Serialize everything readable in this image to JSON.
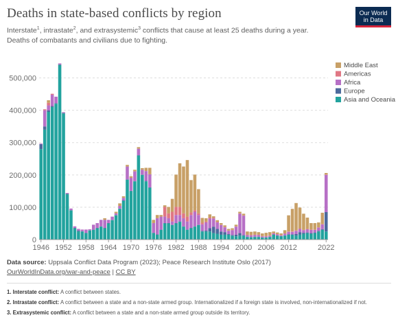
{
  "header": {
    "title": "Deaths in state-based conflicts by region",
    "subtitle_parts": [
      "Interstate",
      "1",
      ", intrastate",
      "2",
      ", and extrasystemic",
      "3",
      " conflicts that cause at least 25 deaths during a year. Deaths of combatants and civilians due to fighting."
    ],
    "logo_line1": "Our World",
    "logo_line2": "in Data"
  },
  "footer": {
    "source_label": "Data source:",
    "source_text": " Uppsala Conflict Data Program (2023); Peace Research Institute Oslo (2017)",
    "link": "OurWorldInData.org/war-and-peace",
    "sep": " | ",
    "license": "CC BY"
  },
  "notes": [
    {
      "label": "1. Interstate conflict:",
      "text": " A conflict between states."
    },
    {
      "label": "2. Intrastate conflict:",
      "text": " A conflict between a state and a non-state armed group. Internationalized if a foreign state is involved, non-internationalized if not."
    },
    {
      "label": "3. Extrasystemic conflict:",
      "text": " A conflict between a state and a non-state armed group outside its territory."
    }
  ],
  "colors": {
    "Asia and Oceania": "#22a39e",
    "Europe": "#4c6a9c",
    "Africa": "#b770c6",
    "Americas": "#e07784",
    "Middle East": "#c8a067",
    "grid": "#dddddd",
    "axis": "#999999"
  },
  "chart_data": {
    "type": "bar",
    "stacked": true,
    "ylim": [
      0,
      550000
    ],
    "yticks": [
      "0",
      "100,000",
      "200,000",
      "300,000",
      "400,000",
      "500,000"
    ],
    "xticks": [
      "1946",
      "1952",
      "1958",
      "1964",
      "1970",
      "1976",
      "1982",
      "1988",
      "1994",
      "2000",
      "2006",
      "2012",
      "2022"
    ],
    "legend_position": "right",
    "grid": true,
    "x": [
      1946,
      1947,
      1948,
      1949,
      1950,
      1951,
      1952,
      1953,
      1954,
      1955,
      1956,
      1957,
      1958,
      1959,
      1960,
      1961,
      1962,
      1963,
      1964,
      1965,
      1966,
      1967,
      1968,
      1969,
      1970,
      1971,
      1972,
      1973,
      1974,
      1975,
      1976,
      1977,
      1978,
      1979,
      1980,
      1981,
      1982,
      1983,
      1984,
      1985,
      1986,
      1987,
      1988,
      1989,
      1990,
      1991,
      1992,
      1993,
      1994,
      1995,
      1996,
      1997,
      1998,
      1999,
      2000,
      2001,
      2002,
      2003,
      2004,
      2005,
      2006,
      2007,
      2008,
      2009,
      2010,
      2011,
      2012,
      2013,
      2014,
      2015,
      2016,
      2017,
      2018,
      2019,
      2020,
      2021,
      2022
    ],
    "series": [
      {
        "name": "Asia and Oceania",
        "values": [
          280000,
          340000,
          395000,
          410000,
          420000,
          540000,
          390000,
          140000,
          90000,
          35000,
          25000,
          25000,
          20000,
          28000,
          30000,
          35000,
          40000,
          35000,
          50000,
          60000,
          75000,
          95000,
          120000,
          185000,
          150000,
          180000,
          260000,
          200000,
          180000,
          160000,
          20000,
          15000,
          30000,
          50000,
          50000,
          45000,
          50000,
          55000,
          40000,
          30000,
          35000,
          40000,
          45000,
          25000,
          25000,
          25000,
          20000,
          18000,
          15000,
          15000,
          15000,
          12000,
          10000,
          12000,
          12000,
          8000,
          7000,
          8000,
          8000,
          6000,
          6000,
          8000,
          15000,
          12000,
          10000,
          12000,
          15000,
          15000,
          12000,
          15000,
          18000,
          20000,
          18000,
          20000,
          25000,
          30000,
          25000
        ]
      },
      {
        "name": "Europe",
        "values": [
          15000,
          10000,
          5000,
          3000,
          2000,
          2000,
          2000,
          2000,
          1000,
          1000,
          3000,
          1000,
          1000,
          1000,
          1000,
          1000,
          1000,
          1000,
          1000,
          1000,
          1000,
          1000,
          1000,
          1000,
          1000,
          1000,
          1000,
          1000,
          2000,
          2000,
          1000,
          1000,
          1000,
          1000,
          1000,
          1000,
          1000,
          1000,
          1000,
          1000,
          1000,
          1000,
          1000,
          2000,
          3000,
          10000,
          20000,
          15000,
          10000,
          8000,
          2000,
          2000,
          5000,
          8000,
          2000,
          1000,
          1000,
          1000,
          1000,
          1000,
          1000,
          1000,
          1000,
          1000,
          1000,
          1000,
          1000,
          1000,
          5000,
          8000,
          3000,
          2000,
          2000,
          2000,
          2000,
          2000,
          60000
        ]
      },
      {
        "name": "Africa",
        "values": [
          2000,
          50000,
          15000,
          35000,
          20000,
          3000,
          2000,
          2000,
          5000,
          5000,
          5000,
          5000,
          10000,
          3000,
          15000,
          15000,
          20000,
          25000,
          10000,
          10000,
          5000,
          8000,
          8000,
          40000,
          40000,
          30000,
          20000,
          15000,
          30000,
          40000,
          30000,
          50000,
          40000,
          20000,
          15000,
          10000,
          25000,
          20000,
          25000,
          25000,
          40000,
          45000,
          30000,
          20000,
          25000,
          30000,
          25000,
          20000,
          20000,
          15000,
          10000,
          15000,
          25000,
          60000,
          60000,
          5000,
          5000,
          5000,
          5000,
          3000,
          3000,
          3000,
          3000,
          3000,
          2000,
          5000,
          8000,
          8000,
          10000,
          10000,
          8000,
          10000,
          10000,
          8000,
          10000,
          15000,
          115000
        ]
      },
      {
        "name": "Americas",
        "values": [
          0,
          3000,
          8000,
          3000,
          0,
          0,
          0,
          0,
          0,
          0,
          0,
          0,
          0,
          0,
          0,
          0,
          0,
          0,
          0,
          0,
          0,
          0,
          0,
          0,
          0,
          0,
          0,
          0,
          0,
          0,
          0,
          0,
          0,
          30000,
          15000,
          30000,
          25000,
          25000,
          15000,
          15000,
          8000,
          5000,
          5000,
          5000,
          3000,
          3000,
          2000,
          2000,
          1000,
          1000,
          1000,
          1000,
          1000,
          1000,
          1000,
          1000,
          1000,
          1000,
          1000,
          1000,
          1000,
          1000,
          1000,
          1000,
          1000,
          1000,
          1000,
          1000,
          1000,
          1000,
          1000,
          1000,
          1000,
          1000,
          1000,
          1000,
          1000
        ]
      },
      {
        "name": "Middle East",
        "values": [
          0,
          0,
          8000,
          0,
          0,
          0,
          0,
          0,
          0,
          0,
          0,
          0,
          0,
          0,
          0,
          0,
          0,
          5000,
          0,
          0,
          5000,
          8000,
          5000,
          5000,
          5000,
          5000,
          5000,
          5000,
          10000,
          20000,
          10000,
          10000,
          5000,
          5000,
          20000,
          40000,
          100000,
          135000,
          145000,
          175000,
          100000,
          110000,
          75000,
          15000,
          10000,
          10000,
          5000,
          5000,
          5000,
          5000,
          5000,
          5000,
          5000,
          5000,
          5000,
          10000,
          10000,
          10000,
          8000,
          8000,
          10000,
          10000,
          5000,
          5000,
          5000,
          10000,
          50000,
          70000,
          85000,
          65000,
          50000,
          35000,
          20000,
          20000,
          15000,
          35000,
          5000
        ]
      }
    ]
  }
}
